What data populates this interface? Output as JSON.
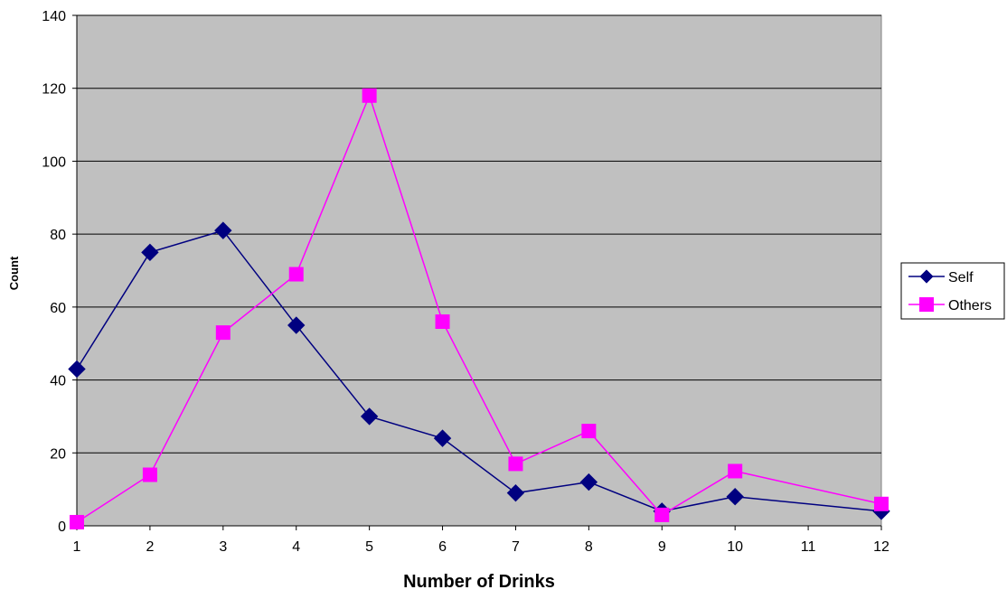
{
  "chart_data": {
    "type": "line",
    "title": "",
    "xlabel": "Number of Drinks",
    "ylabel": "Count",
    "xlim": [
      1,
      12
    ],
    "ylim": [
      0,
      140
    ],
    "x_ticks": [
      1,
      2,
      3,
      4,
      5,
      6,
      7,
      8,
      9,
      10,
      11,
      12
    ],
    "y_ticks": [
      0,
      20,
      40,
      60,
      80,
      100,
      120,
      140
    ],
    "grid": "horizontal",
    "legend_position": "right",
    "plot_background": "#c0c0c0",
    "series": [
      {
        "name": "Self",
        "color": "#000080",
        "marker": "diamond",
        "x": [
          1,
          2,
          3,
          4,
          5,
          6,
          7,
          8,
          9,
          10,
          12
        ],
        "y": [
          43,
          75,
          81,
          55,
          30,
          24,
          9,
          12,
          4,
          8,
          4
        ]
      },
      {
        "name": "Others",
        "color": "#ff00ff",
        "marker": "square",
        "x": [
          1,
          2,
          3,
          4,
          5,
          6,
          7,
          8,
          9,
          10,
          12
        ],
        "y": [
          1,
          14,
          53,
          69,
          118,
          56,
          17,
          26,
          3,
          15,
          6
        ]
      }
    ]
  }
}
